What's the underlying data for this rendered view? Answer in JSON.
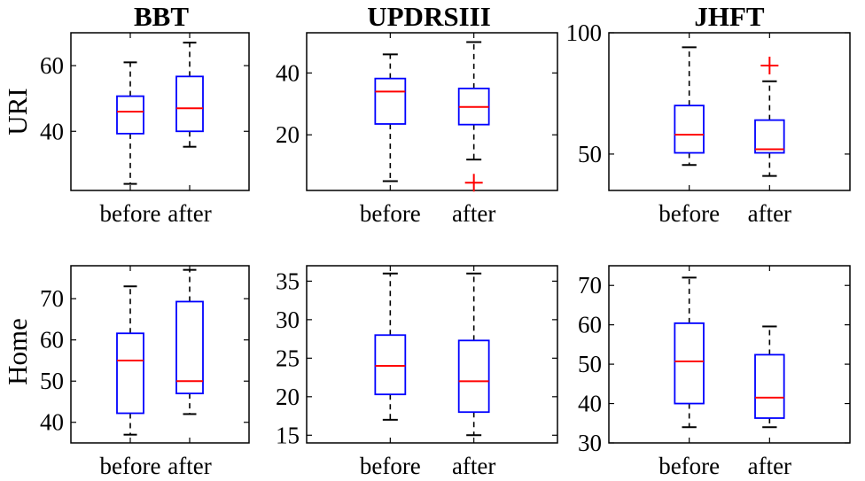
{
  "column_titles": [
    "BBT",
    "UPDRSIII",
    "JHFT"
  ],
  "row_labels": [
    "URI",
    "Home"
  ],
  "colors": {
    "box": "#0000ff",
    "median": "#ff0000",
    "whisker": "#000000",
    "outlier": "#ff0000",
    "axes": "#000000"
  },
  "chart_data": [
    {
      "type": "box",
      "title": "BBT",
      "ylabel": "URI",
      "ylim": [
        22,
        70
      ],
      "yticks": [
        40,
        60
      ],
      "yticklabels": [
        "40",
        "60"
      ],
      "categories": [
        "before",
        "after"
      ],
      "boxes": [
        {
          "whisker_low": 24,
          "q1": 39.3,
          "median": 46,
          "q3": 50.7,
          "whisker_high": 61,
          "outliers": []
        },
        {
          "whisker_low": 35.3,
          "q1": 40,
          "median": 47,
          "q3": 56.7,
          "whisker_high": 67,
          "outliers": []
        }
      ]
    },
    {
      "type": "box",
      "title": "UPDRSIII",
      "ylabel": "",
      "ylim": [
        2,
        53
      ],
      "yticks": [
        20,
        40
      ],
      "yticklabels": [
        "20",
        "40"
      ],
      "categories": [
        "before",
        "after"
      ],
      "boxes": [
        {
          "whisker_low": 5,
          "q1": 23.5,
          "median": 34,
          "q3": 38.2,
          "whisker_high": 46,
          "outliers": []
        },
        {
          "whisker_low": 12,
          "q1": 23.3,
          "median": 29,
          "q3": 35,
          "whisker_high": 50,
          "outliers": [
            4.5
          ]
        }
      ]
    },
    {
      "type": "box",
      "title": "JHFT",
      "ylabel": "",
      "ylim": [
        35,
        100
      ],
      "yticks": [
        50,
        100
      ],
      "yticklabels": [
        "50",
        "100"
      ],
      "categories": [
        "before",
        "after"
      ],
      "boxes": [
        {
          "whisker_low": 45.5,
          "q1": 50.5,
          "median": 58,
          "q3": 70,
          "whisker_high": 94,
          "outliers": []
        },
        {
          "whisker_low": 41,
          "q1": 50.5,
          "median": 52,
          "q3": 64,
          "whisker_high": 80,
          "outliers": [
            86.5
          ]
        }
      ]
    },
    {
      "type": "box",
      "title": "",
      "ylabel": "Home",
      "ylim": [
        35,
        78
      ],
      "yticks": [
        40,
        50,
        60,
        70
      ],
      "yticklabels": [
        "40",
        "50",
        "60",
        "70"
      ],
      "categories": [
        "before",
        "after"
      ],
      "boxes": [
        {
          "whisker_low": 37,
          "q1": 42.2,
          "median": 55,
          "q3": 61.6,
          "whisker_high": 73,
          "outliers": []
        },
        {
          "whisker_low": 42,
          "q1": 47,
          "median": 50,
          "q3": 69.3,
          "whisker_high": 77,
          "outliers": []
        }
      ]
    },
    {
      "type": "box",
      "title": "",
      "ylabel": "",
      "ylim": [
        14,
        37
      ],
      "yticks": [
        15,
        20,
        25,
        30,
        35
      ],
      "yticklabels": [
        "15",
        "20",
        "25",
        "30",
        "35"
      ],
      "categories": [
        "before",
        "after"
      ],
      "boxes": [
        {
          "whisker_low": 17,
          "q1": 20.3,
          "median": 24,
          "q3": 28,
          "whisker_high": 36,
          "outliers": []
        },
        {
          "whisker_low": 15,
          "q1": 18,
          "median": 22,
          "q3": 27.3,
          "whisker_high": 36,
          "outliers": []
        }
      ]
    },
    {
      "type": "box",
      "title": "",
      "ylabel": "",
      "ylim": [
        30,
        75
      ],
      "yticks": [
        30,
        40,
        50,
        60,
        70
      ],
      "yticklabels": [
        "30",
        "40",
        "50",
        "60",
        "70"
      ],
      "categories": [
        "before",
        "after"
      ],
      "boxes": [
        {
          "whisker_low": 34,
          "q1": 40,
          "median": 50.7,
          "q3": 60.4,
          "whisker_high": 72,
          "outliers": []
        },
        {
          "whisker_low": 34,
          "q1": 36.3,
          "median": 41.5,
          "q3": 52.4,
          "whisker_high": 59.6,
          "outliers": []
        }
      ]
    }
  ]
}
